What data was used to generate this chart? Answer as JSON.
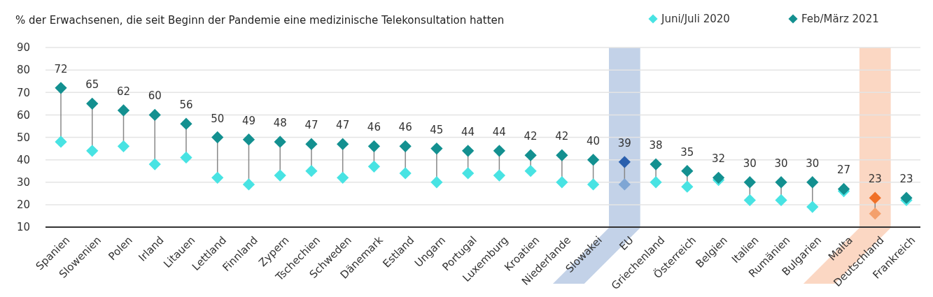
{
  "chart_data": {
    "type": "scatter",
    "title": "% der Erwachsenen, die seit Beginn der Pandemie eine medizinische Telekonsultation hatten",
    "categories": [
      "Spanien",
      "Slowenien",
      "Polen",
      "Irland",
      "Litauen",
      "Lettland",
      "Finnland",
      "Zypern",
      "Tschechien",
      "Schweden",
      "Dänemark",
      "Estland",
      "Ungarn",
      "Portugal",
      "Luxemburg",
      "Kroatien",
      "Niederlande",
      "Slowakei",
      "EU",
      "Griechenland",
      "Österreich",
      "Belgien",
      "Italien",
      "Rumänien",
      "Bulgarien",
      "Malta",
      "Deutschland",
      "Frankreich"
    ],
    "series": [
      {
        "name": "Juni/Juli 2020",
        "color": "#48e3e3",
        "colors": [
          "#48e3e3",
          "#48e3e3",
          "#48e3e3",
          "#48e3e3",
          "#48e3e3",
          "#48e3e3",
          "#48e3e3",
          "#48e3e3",
          "#48e3e3",
          "#48e3e3",
          "#48e3e3",
          "#48e3e3",
          "#48e3e3",
          "#48e3e3",
          "#48e3e3",
          "#48e3e3",
          "#48e3e3",
          "#48e3e3",
          "#7fa6d4",
          "#48e3e3",
          "#48e3e3",
          "#48e3e3",
          "#48e3e3",
          "#48e3e3",
          "#48e3e3",
          "#48e3e3",
          "#f4a06c",
          "#48e3e3"
        ],
        "values": [
          48,
          44,
          46,
          38,
          41,
          32,
          29,
          33,
          35,
          32,
          37,
          34,
          30,
          34,
          33,
          35,
          30,
          29,
          29,
          30,
          28,
          31,
          22,
          22,
          19,
          26,
          16,
          22
        ]
      },
      {
        "name": "Feb/März 2021",
        "color": "#139090",
        "colors": [
          "#139090",
          "#139090",
          "#139090",
          "#139090",
          "#139090",
          "#139090",
          "#139090",
          "#139090",
          "#139090",
          "#139090",
          "#139090",
          "#139090",
          "#139090",
          "#139090",
          "#139090",
          "#139090",
          "#139090",
          "#139090",
          "#2a5fad",
          "#139090",
          "#139090",
          "#139090",
          "#139090",
          "#139090",
          "#139090",
          "#139090",
          "#f07028",
          "#139090"
        ],
        "values": [
          72,
          65,
          62,
          60,
          56,
          50,
          49,
          48,
          47,
          47,
          46,
          46,
          45,
          44,
          44,
          42,
          42,
          40,
          39,
          38,
          35,
          32,
          30,
          30,
          30,
          27,
          23,
          23
        ],
        "value_labels": [
          "72",
          "65",
          "62",
          "60",
          "56",
          "50",
          "49",
          "48",
          "47",
          "47",
          "46",
          "46",
          "45",
          "44",
          "44",
          "42",
          "42",
          "40",
          "39",
          "38",
          "35",
          "32",
          "30",
          "30",
          "30",
          "27",
          "23",
          "23"
        ]
      }
    ],
    "ylim": [
      10,
      90
    ],
    "yticks": [
      10,
      20,
      30,
      40,
      50,
      60,
      70,
      80,
      90
    ],
    "grid": "y",
    "legend": "top right",
    "marker": "diamond"
  }
}
